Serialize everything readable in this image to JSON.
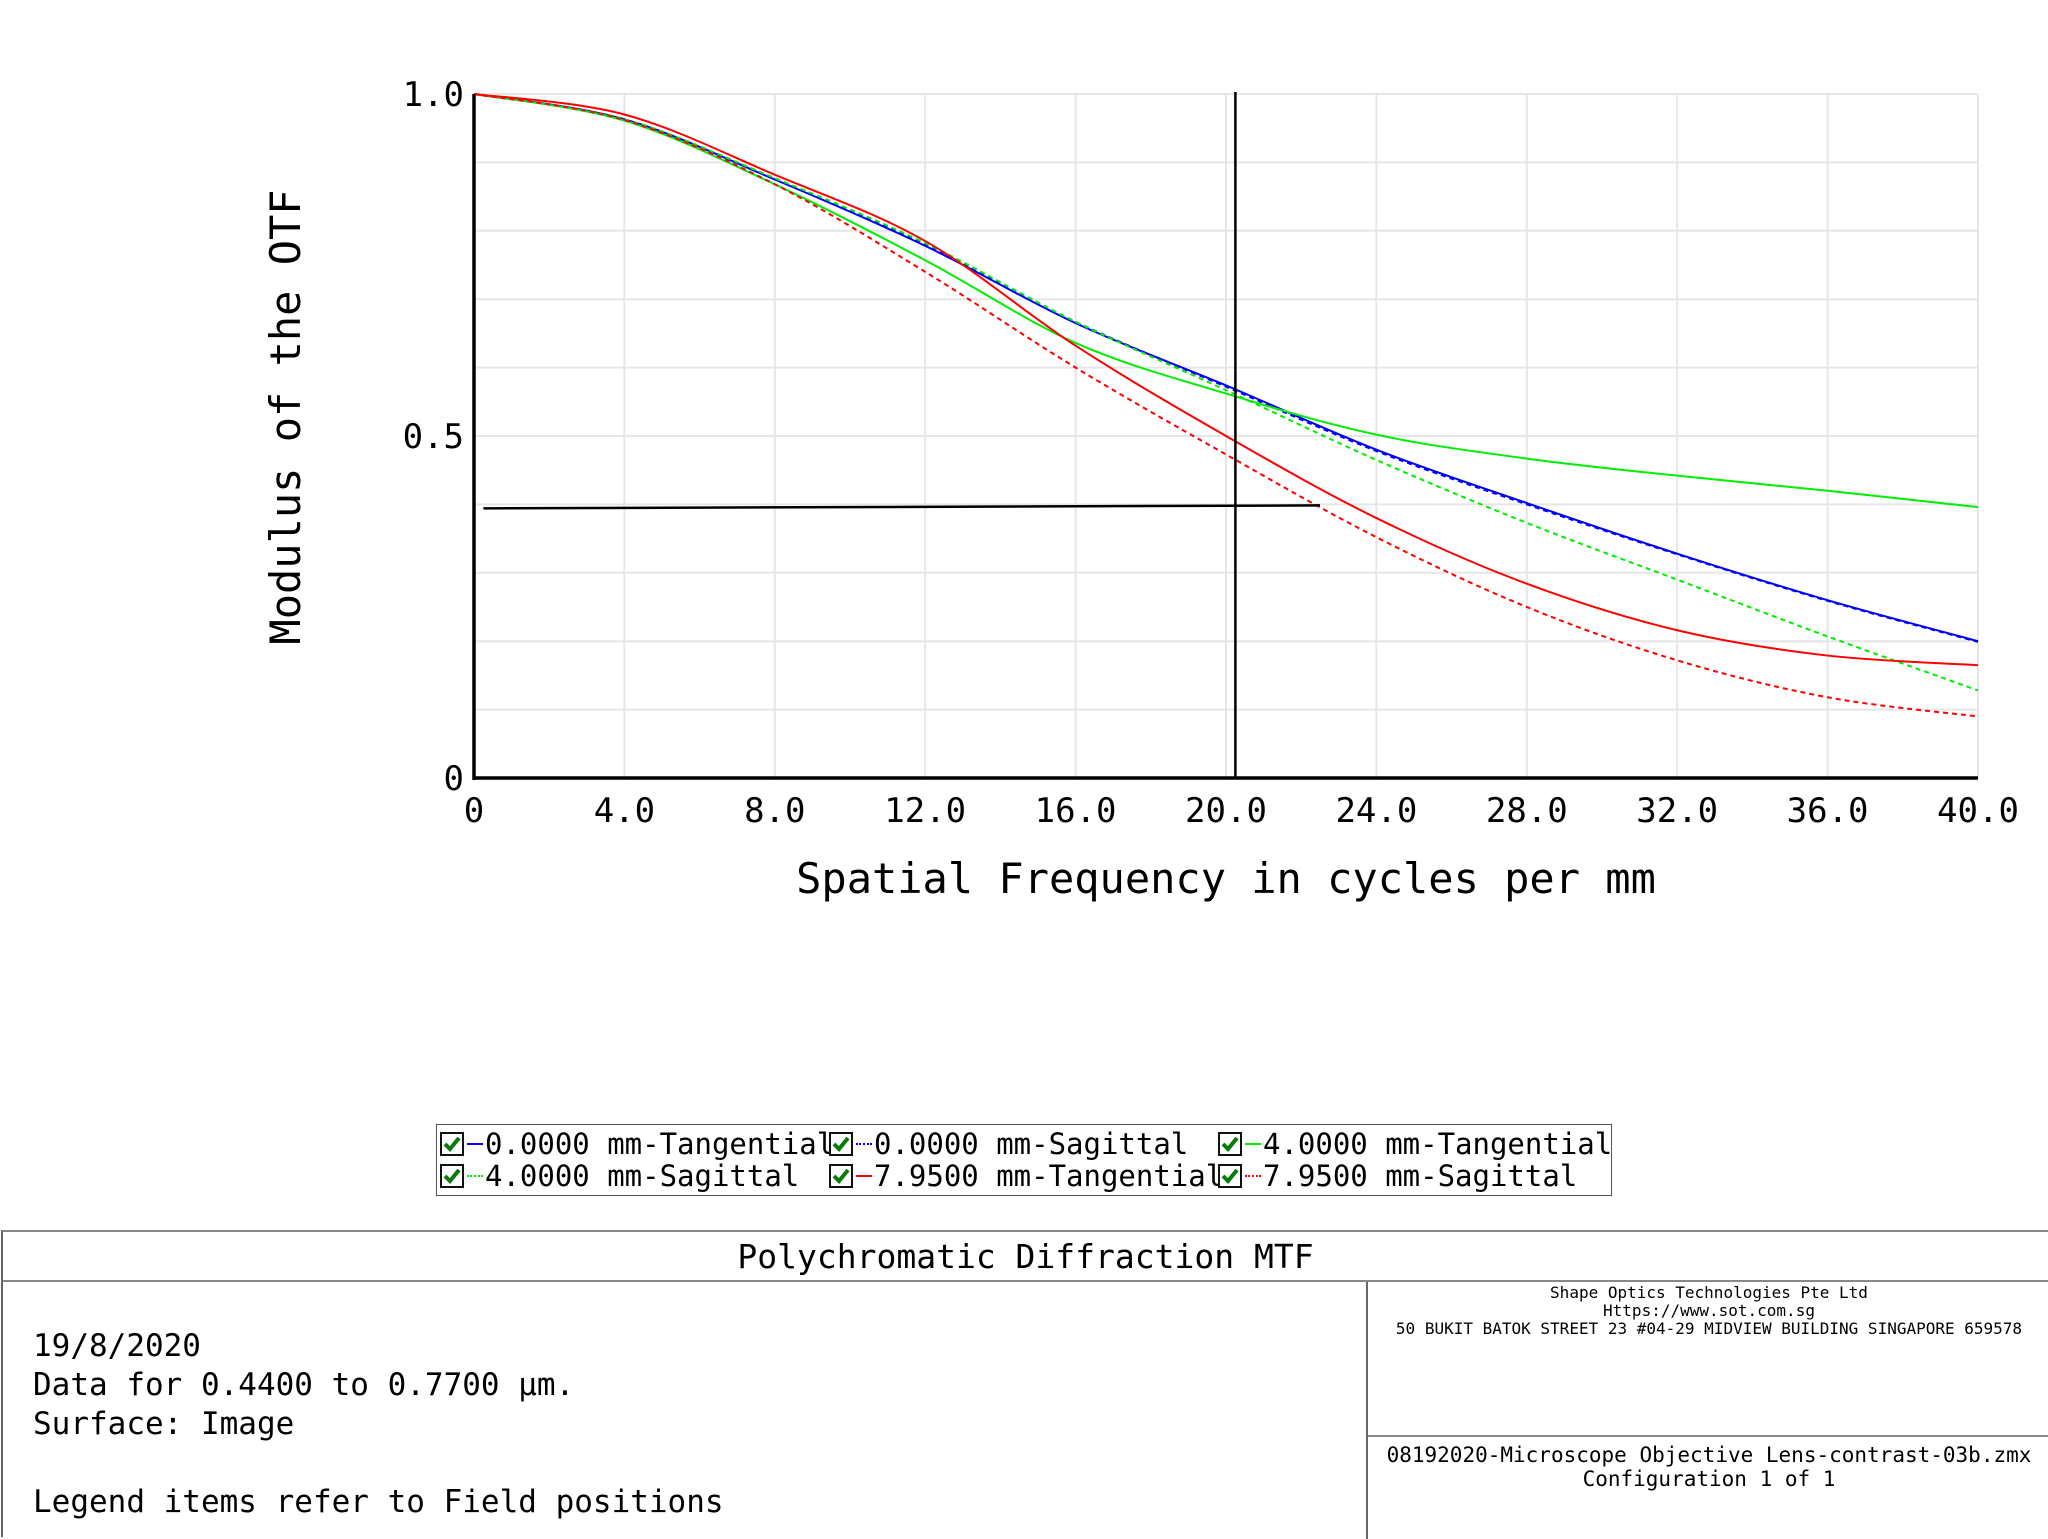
{
  "chart_data": {
    "type": "line",
    "title": "Polychromatic Diffraction MTF",
    "xlabel": "Spatial Frequency in cycles per mm",
    "ylabel": "Modulus of the OTF",
    "xlim": [
      0,
      40
    ],
    "ylim": [
      0,
      1.0
    ],
    "x_ticks": [
      "0",
      "4.0",
      "8.0",
      "12.0",
      "16.0",
      "20.0",
      "24.0",
      "28.0",
      "32.0",
      "36.0",
      "40.0"
    ],
    "y_ticks": [
      "0",
      "0.5",
      "1.0"
    ],
    "grid": true,
    "legend_position": "bottom",
    "x": [
      0,
      4,
      8,
      12,
      16,
      20,
      24,
      28,
      32,
      36,
      40
    ],
    "series": [
      {
        "name": "0.0000 mm-Tangential",
        "color": "#0000ff",
        "style": "solid",
        "values": [
          1.0,
          0.963,
          0.875,
          0.778,
          0.665,
          0.574,
          0.48,
          0.402,
          0.328,
          0.26,
          0.2
        ]
      },
      {
        "name": "0.0000 mm-Sagittal",
        "color": "#0000ff",
        "style": "dotted",
        "values": [
          1.0,
          0.963,
          0.876,
          0.78,
          0.667,
          0.572,
          0.478,
          0.4,
          0.327,
          0.259,
          0.199
        ]
      },
      {
        "name": "4.0000 mm-Tangential",
        "color": "#00ee00",
        "style": "solid",
        "values": [
          1.0,
          0.961,
          0.868,
          0.757,
          0.636,
          0.562,
          0.502,
          0.467,
          0.442,
          0.42,
          0.396
        ]
      },
      {
        "name": "4.0000 mm-Sagittal",
        "color": "#00ee00",
        "style": "dotted",
        "values": [
          1.0,
          0.963,
          0.877,
          0.782,
          0.667,
          0.567,
          0.465,
          0.373,
          0.29,
          0.207,
          0.128
        ]
      },
      {
        "name": "7.9500 mm-Tangential",
        "color": "#ff0000",
        "style": "solid",
        "values": [
          1.0,
          0.97,
          0.882,
          0.785,
          0.632,
          0.5,
          0.38,
          0.284,
          0.216,
          0.179,
          0.165
        ]
      },
      {
        "name": "7.9500 mm-Sagittal",
        "color": "#ff0000",
        "style": "dotted",
        "values": [
          1.0,
          0.962,
          0.868,
          0.74,
          0.6,
          0.473,
          0.352,
          0.25,
          0.172,
          0.118,
          0.09
        ]
      }
    ],
    "cursor": {
      "x": 20.25,
      "horizontal_line": {
        "y": 0.4,
        "x_from": 0.25,
        "x_to": 22.5
      }
    }
  },
  "legend": {
    "items": [
      {
        "label": "0.0000 mm-Tangential",
        "checked": true
      },
      {
        "label": "0.0000 mm-Sagittal",
        "checked": true
      },
      {
        "label": "4.0000 mm-Tangential",
        "checked": true
      },
      {
        "label": "4.0000 mm-Sagittal",
        "checked": true
      },
      {
        "label": "7.9500 mm-Tangential",
        "checked": true
      },
      {
        "label": "7.9500 mm-Sagittal",
        "checked": true
      }
    ]
  },
  "info": {
    "title": "Polychromatic Diffraction MTF",
    "date": "19/8/2020",
    "wavelength": "Data for 0.4400 to 0.7700 µm.",
    "surface": "Surface: Image",
    "legend_note": "Legend items refer to Field positions",
    "company_name": "Shape Optics Technologies Pte Ltd",
    "company_url": "Https://www.sot.com.sg",
    "company_address": "50 BUKIT BATOK STREET 23 #04-29 MIDVIEW BUILDING SINGAPORE 659578",
    "file_name": "08192020-Microscope Objective Lens-contrast-03b.zmx",
    "configuration": "Configuration 1 of 1"
  }
}
